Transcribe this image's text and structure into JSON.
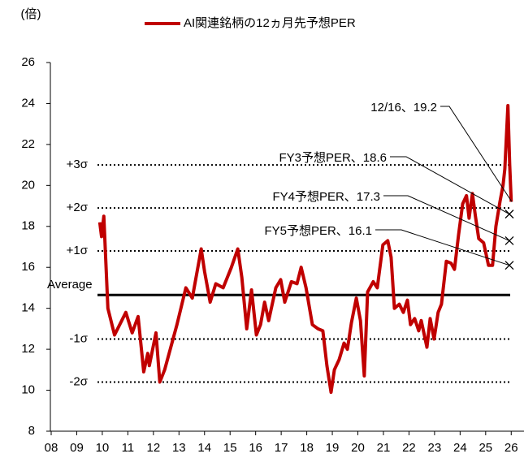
{
  "chart_data": {
    "type": "line",
    "y_label": "(倍)",
    "xlim": [
      2008,
      2026.5
    ],
    "xticks": [
      {
        "value": 2008,
        "label": "08"
      },
      {
        "value": 2009,
        "label": "09"
      },
      {
        "value": 2010,
        "label": "10"
      },
      {
        "value": 2011,
        "label": "11"
      },
      {
        "value": 2012,
        "label": "12"
      },
      {
        "value": 2013,
        "label": "13"
      },
      {
        "value": 2014,
        "label": "14"
      },
      {
        "value": 2015,
        "label": "15"
      },
      {
        "value": 2016,
        "label": "16"
      },
      {
        "value": 2017,
        "label": "17"
      },
      {
        "value": 2018,
        "label": "18"
      },
      {
        "value": 2019,
        "label": "19"
      },
      {
        "value": 2020,
        "label": "20"
      },
      {
        "value": 2021,
        "label": "21"
      },
      {
        "value": 2022,
        "label": "22"
      },
      {
        "value": 2023,
        "label": "23"
      },
      {
        "value": 2024,
        "label": "24"
      },
      {
        "value": 2025,
        "label": "25"
      },
      {
        "value": 2026,
        "label": "26"
      }
    ],
    "ylim": [
      8,
      26
    ],
    "yticks": [
      8,
      10,
      12,
      14,
      16,
      18,
      20,
      22,
      24,
      26
    ],
    "legend": "top",
    "x": [
      2009.9,
      2009.97,
      2010.06,
      2010.22,
      2010.48,
      2010.92,
      2011.17,
      2011.4,
      2011.62,
      2011.78,
      2011.84,
      2012.1,
      2012.25,
      2012.44,
      2012.92,
      2013.27,
      2013.52,
      2013.87,
      2014.0,
      2014.22,
      2014.44,
      2014.73,
      2015.05,
      2015.3,
      2015.46,
      2015.65,
      2015.84,
      2016.03,
      2016.19,
      2016.35,
      2016.51,
      2016.79,
      2016.98,
      2017.14,
      2017.4,
      2017.62,
      2017.78,
      2017.97,
      2018.22,
      2018.44,
      2018.63,
      2018.79,
      2018.95,
      2019.08,
      2019.27,
      2019.46,
      2019.59,
      2019.75,
      2019.94,
      2020.1,
      2020.25,
      2020.38,
      2020.6,
      2020.76,
      2020.98,
      2021.17,
      2021.3,
      2021.43,
      2021.62,
      2021.78,
      2021.94,
      2022.06,
      2022.22,
      2022.38,
      2022.48,
      2022.7,
      2022.83,
      2022.98,
      2023.14,
      2023.27,
      2023.46,
      2023.65,
      2023.78,
      2023.94,
      2024.1,
      2024.25,
      2024.35,
      2024.48,
      2024.6,
      2024.73,
      2024.92,
      2025.11,
      2025.27,
      2025.4,
      2025.56,
      2025.68,
      2025.75,
      2025.87,
      2025.94,
      2026.0
    ],
    "series": [
      {
        "name": "AI関連銘柄の12ヵ月先予想PER",
        "color": "#c00000",
        "values": [
          18.2,
          17.5,
          18.5,
          14.0,
          12.7,
          13.8,
          12.8,
          13.6,
          10.9,
          11.8,
          11.2,
          12.8,
          10.4,
          11.0,
          13.2,
          15.0,
          14.5,
          16.9,
          15.8,
          14.3,
          15.2,
          15.0,
          16.0,
          16.9,
          15.5,
          13.0,
          14.9,
          12.7,
          13.2,
          14.3,
          13.4,
          15.0,
          15.4,
          14.3,
          15.3,
          15.2,
          16.0,
          15.0,
          13.2,
          13.0,
          12.9,
          11.2,
          9.9,
          11.0,
          11.5,
          12.3,
          12.0,
          13.3,
          14.5,
          13.4,
          10.7,
          14.8,
          15.3,
          15.0,
          17.1,
          17.3,
          16.5,
          14.0,
          14.2,
          13.8,
          14.4,
          13.2,
          13.5,
          12.9,
          13.4,
          12.1,
          13.5,
          12.5,
          13.8,
          14.2,
          16.3,
          16.2,
          15.9,
          17.6,
          19.1,
          19.5,
          18.4,
          19.6,
          18.5,
          17.4,
          17.2,
          16.1,
          16.1,
          18.0,
          19.2,
          20.0,
          20.8,
          23.9,
          21.0,
          19.2
        ]
      }
    ],
    "reference_lines": [
      {
        "label": "+3σ",
        "value": 21.0,
        "style": "dotted"
      },
      {
        "label": "+2σ",
        "value": 18.9,
        "style": "dotted"
      },
      {
        "label": "+1σ",
        "value": 16.8,
        "style": "dotted"
      },
      {
        "label": "Average",
        "value": 14.65,
        "style": "solid"
      },
      {
        "label": "-1σ",
        "value": 12.5,
        "style": "dotted"
      },
      {
        "label": "-2σ",
        "value": 10.4,
        "style": "dotted"
      }
    ],
    "annotations": [
      {
        "text": "12/16、19.2",
        "value": 19.2
      },
      {
        "text": "FY3予想PER、18.6",
        "value": 18.6
      },
      {
        "text": "FY4予想PER、17.3",
        "value": 17.3
      },
      {
        "text": "FY5予想PER、16.1",
        "value": 16.1
      }
    ]
  }
}
